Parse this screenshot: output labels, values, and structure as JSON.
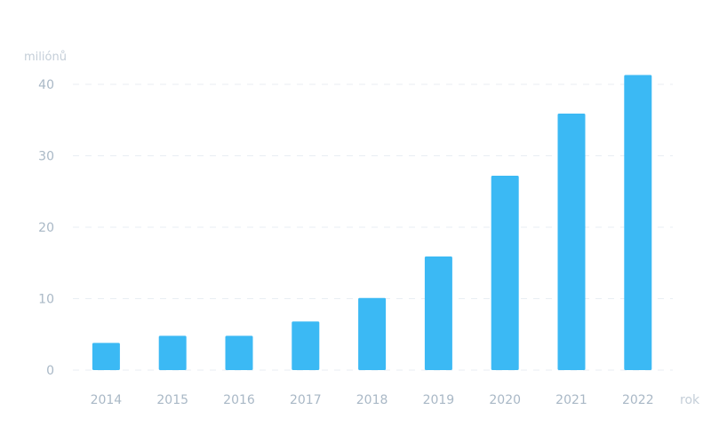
{
  "chart_data": {
    "type": "bar",
    "title": "",
    "xlabel": "rok",
    "ylabel": "miliónů",
    "categories": [
      "2014",
      "2015",
      "2016",
      "2017",
      "2018",
      "2019",
      "2020",
      "2021",
      "2022"
    ],
    "values": [
      3.8,
      4.8,
      4.8,
      6.8,
      10.1,
      15.9,
      27.2,
      35.9,
      41.3
    ],
    "ylim": [
      0,
      40
    ],
    "yticks": [
      0,
      10,
      20,
      30,
      40
    ],
    "grid": true,
    "legend": "none",
    "colors": {
      "bar": "#3bb9f4",
      "grid": "#e9eef3",
      "tick_text": "#a9b8c6",
      "axis_label": "#c4ced8"
    }
  }
}
